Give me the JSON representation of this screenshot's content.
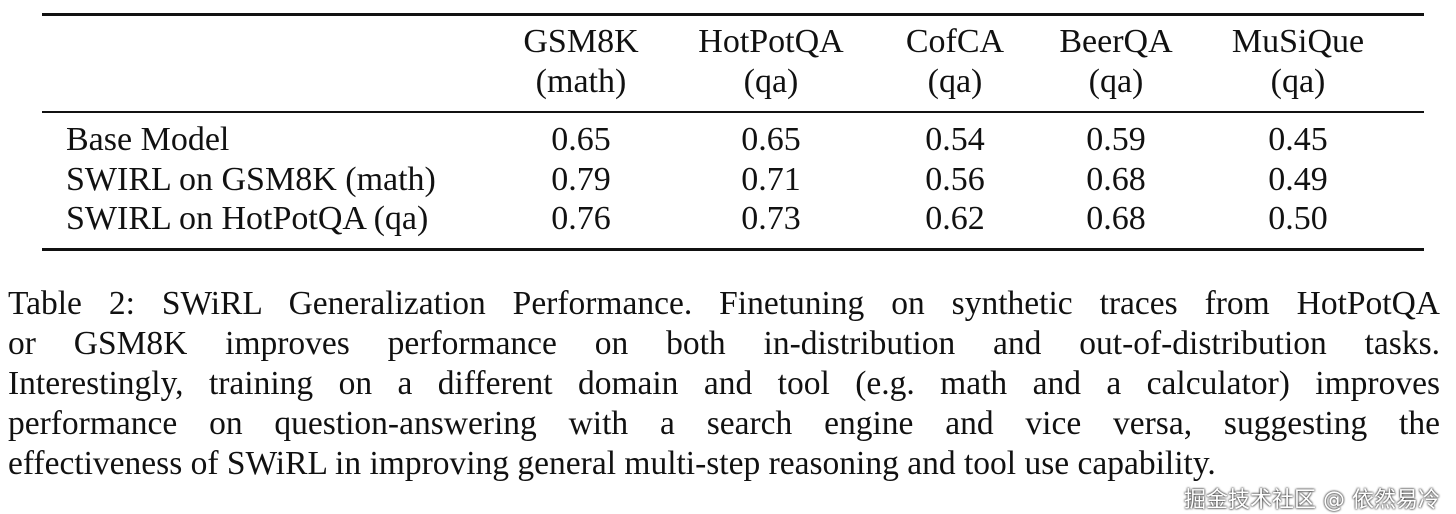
{
  "table": {
    "columns": [
      {
        "name": "GSM8K",
        "domain": "(math)"
      },
      {
        "name": "HotPotQA",
        "domain": "(qa)"
      },
      {
        "name": "CofCA",
        "domain": "(qa)"
      },
      {
        "name": "BeerQA",
        "domain": "(qa)"
      },
      {
        "name": "MuSiQue",
        "domain": "(qa)"
      }
    ],
    "rows": [
      {
        "label": "Base Model",
        "cells": [
          "0.65",
          "0.65",
          "0.54",
          "0.59",
          "0.45"
        ]
      },
      {
        "label": "SWIRL on GSM8K (math)",
        "cells": [
          "0.79",
          "0.71",
          "0.56",
          "0.68",
          "0.49"
        ]
      },
      {
        "label": "SWIRL on HotPotQA (qa)",
        "cells": [
          "0.76",
          "0.73",
          "0.62",
          "0.68",
          "0.50"
        ]
      }
    ]
  },
  "caption": {
    "lines": [
      "Table 2: SWiRL Generalization Performance. Finetuning on synthetic traces from HotPotQA",
      "or GSM8K improves performance on both in-distribution and out-of-distribution tasks.",
      "Interestingly, training on a different domain and tool (e.g. math and a calculator) improves",
      "performance on question-answering with a search engine and vice versa, suggesting the",
      "effectiveness of SWiRL in improving general multi-step reasoning and tool use capability."
    ]
  },
  "watermark": "掘金技术社区 @ 依然易冷"
}
